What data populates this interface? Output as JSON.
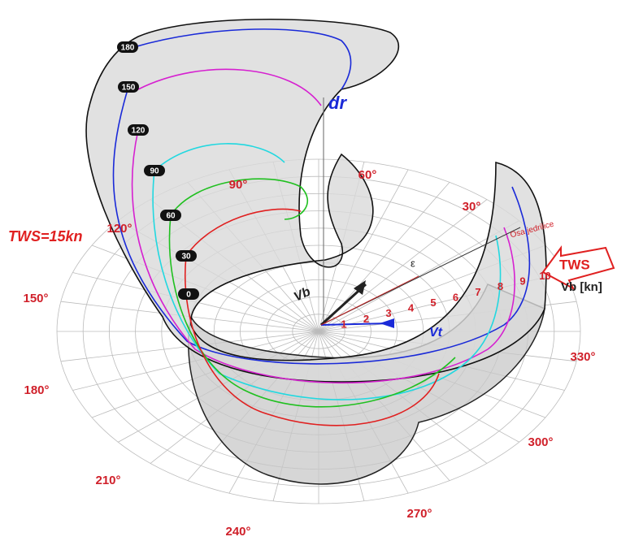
{
  "title": "TWS=15kn",
  "angle_labels": [
    "30°",
    "60°",
    "90°",
    "120°",
    "150°",
    "180°",
    "210°",
    "240°",
    "270°",
    "300°",
    "330°"
  ],
  "height_labels": [
    "180",
    "150",
    "120",
    "90",
    "60",
    "30",
    "0"
  ],
  "speed_labels": [
    "1",
    "2",
    "3",
    "4",
    "5",
    "6",
    "7",
    "8",
    "9",
    "10"
  ],
  "vectors": {
    "vb": "Vb",
    "vt": "Vt",
    "dr": "dr",
    "epsilon": "ε"
  },
  "wind_arrow": "TWS",
  "axis_label": "Vb [kn]",
  "boat_axis": "Osa jedrilice"
}
